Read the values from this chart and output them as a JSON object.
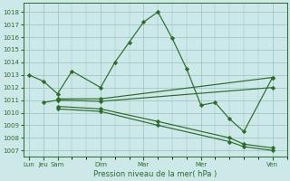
{
  "background_color": "#cce8e8",
  "grid_color": "#9bbfbf",
  "line_color": "#2d6b2d",
  "marker_style": "D",
  "marker_size": 2.2,
  "xlabel": "Pression niveau de la mer( hPa )",
  "ylim": [
    1006.5,
    1018.7
  ],
  "yticks": [
    1007,
    1008,
    1009,
    1010,
    1011,
    1012,
    1013,
    1014,
    1015,
    1016,
    1017,
    1018
  ],
  "series": [
    {
      "x": [
        0,
        0.5,
        1.0,
        1.5,
        2.5,
        3.0,
        3.5,
        4.0,
        4.5,
        5.0,
        5.5,
        6.0,
        6.5,
        7.0,
        7.5,
        8.5
      ],
      "y": [
        1013.0,
        1012.5,
        1011.5,
        1013.3,
        1012.0,
        1014.0,
        1015.6,
        1017.2,
        1018.0,
        1015.9,
        1013.5,
        1010.6,
        1010.8,
        1009.5,
        1008.5,
        1012.8
      ]
    },
    {
      "x": [
        1.0,
        2.5,
        8.5
      ],
      "y": [
        1011.1,
        1011.1,
        1012.8
      ]
    },
    {
      "x": [
        0.5,
        1.0,
        2.5,
        8.5
      ],
      "y": [
        1010.8,
        1011.0,
        1010.9,
        1012.0
      ]
    },
    {
      "x": [
        1.0,
        2.5,
        4.5,
        7.0,
        7.5,
        8.5
      ],
      "y": [
        1010.5,
        1010.3,
        1009.3,
        1008.0,
        1007.5,
        1007.2
      ]
    },
    {
      "x": [
        1.0,
        2.5,
        4.5,
        7.0,
        7.5,
        8.5
      ],
      "y": [
        1010.3,
        1010.1,
        1009.0,
        1007.7,
        1007.3,
        1007.0
      ]
    }
  ],
  "x_tick_positions": [
    0,
    0.5,
    1.0,
    2.5,
    4.0,
    6.0,
    8.5
  ],
  "x_tick_labels": [
    "Lun",
    "Jeu",
    "Sam",
    "Dim",
    "Mar",
    "Mer",
    "Ven"
  ],
  "xlim": [
    -0.2,
    9.0
  ]
}
